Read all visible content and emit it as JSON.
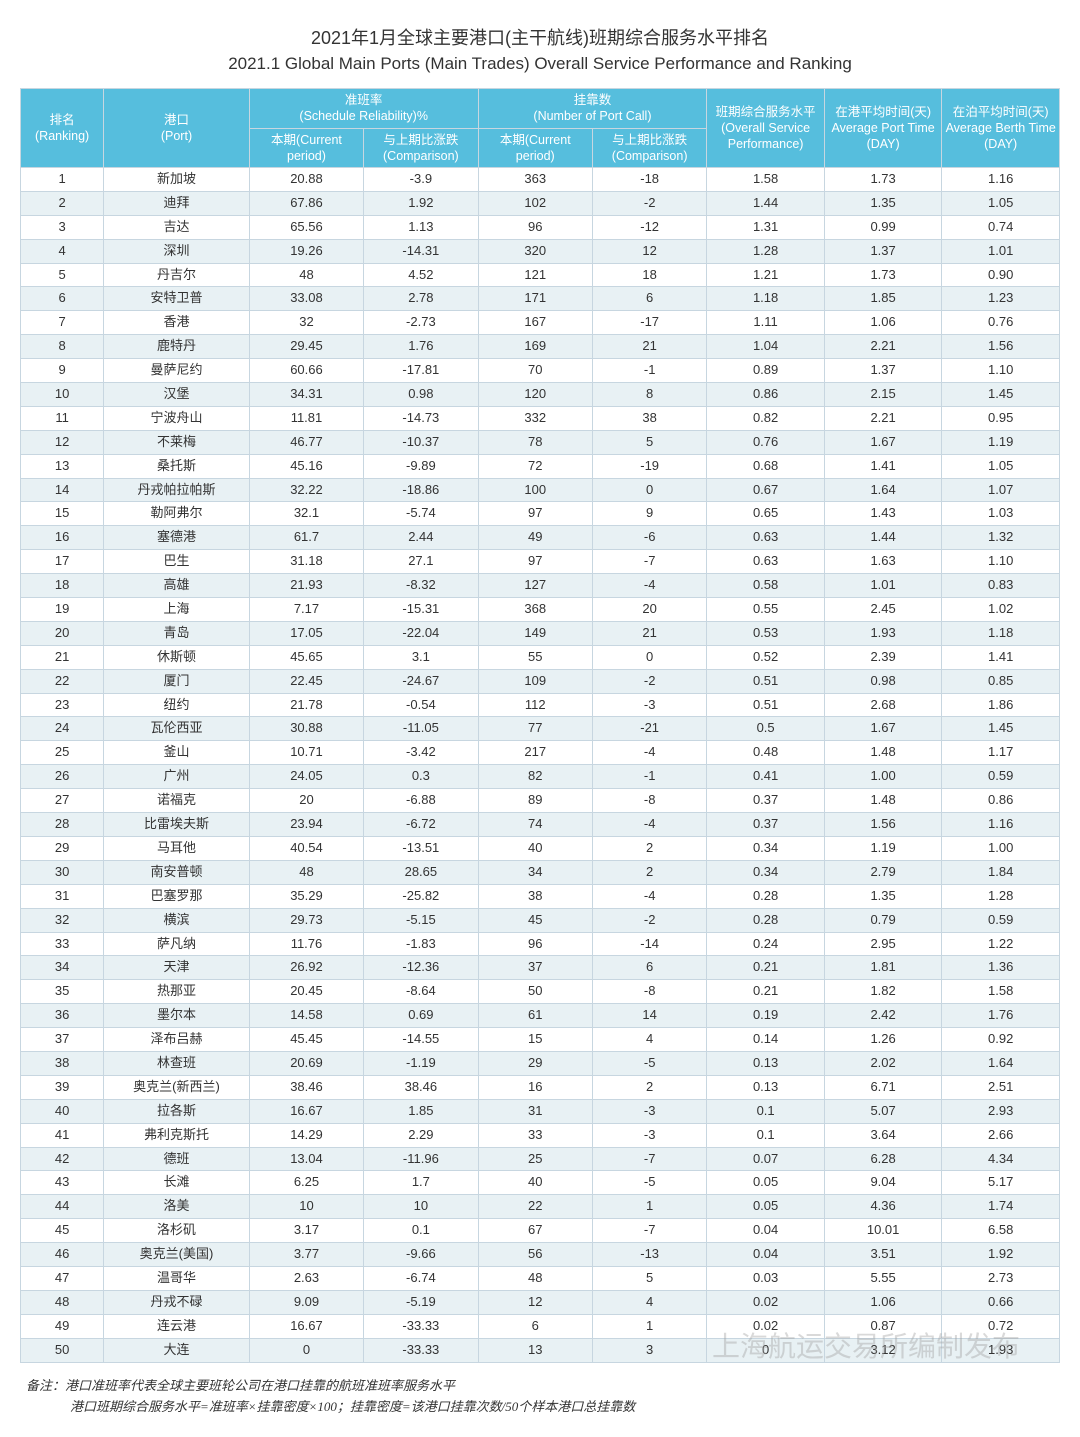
{
  "title_cn": "2021年1月全球主要港口(主干航线)班期综合服务水平排名",
  "title_en": "2021.1 Global Main Ports (Main Trades) Overall Service Performance and Ranking",
  "headers": {
    "ranking": "排名\n(Ranking)",
    "port": "港口\n(Port)",
    "reliability_group": "准班率\n(Schedule Reliability)%",
    "reliability_current": "本期(Current period)",
    "reliability_comp": "与上期比涨跌(Comparison)",
    "portcall_group": "挂靠数\n(Number of Port Call)",
    "portcall_current": "本期(Current period)",
    "portcall_comp": "与上期比涨跌(Comparison)",
    "overall": "班期综合服务水平(Overall Service Performance)",
    "avg_port": "在港平均时间(天)\nAverage Port Time (DAY)",
    "avg_berth": "在泊平均时间(天)\nAverage Berth Time (DAY)"
  },
  "rows": [
    [
      "1",
      "新加坡",
      "20.88",
      "-3.9",
      "363",
      "-18",
      "1.58",
      "1.73",
      "1.16"
    ],
    [
      "2",
      "迪拜",
      "67.86",
      "1.92",
      "102",
      "-2",
      "1.44",
      "1.35",
      "1.05"
    ],
    [
      "3",
      "吉达",
      "65.56",
      "1.13",
      "96",
      "-12",
      "1.31",
      "0.99",
      "0.74"
    ],
    [
      "4",
      "深圳",
      "19.26",
      "-14.31",
      "320",
      "12",
      "1.28",
      "1.37",
      "1.01"
    ],
    [
      "5",
      "丹吉尔",
      "48",
      "4.52",
      "121",
      "18",
      "1.21",
      "1.73",
      "0.90"
    ],
    [
      "6",
      "安特卫普",
      "33.08",
      "2.78",
      "171",
      "6",
      "1.18",
      "1.85",
      "1.23"
    ],
    [
      "7",
      "香港",
      "32",
      "-2.73",
      "167",
      "-17",
      "1.11",
      "1.06",
      "0.76"
    ],
    [
      "8",
      "鹿特丹",
      "29.45",
      "1.76",
      "169",
      "21",
      "1.04",
      "2.21",
      "1.56"
    ],
    [
      "9",
      "曼萨尼约",
      "60.66",
      "-17.81",
      "70",
      "-1",
      "0.89",
      "1.37",
      "1.10"
    ],
    [
      "10",
      "汉堡",
      "34.31",
      "0.98",
      "120",
      "8",
      "0.86",
      "2.15",
      "1.45"
    ],
    [
      "11",
      "宁波舟山",
      "11.81",
      "-14.73",
      "332",
      "38",
      "0.82",
      "2.21",
      "0.95"
    ],
    [
      "12",
      "不莱梅",
      "46.77",
      "-10.37",
      "78",
      "5",
      "0.76",
      "1.67",
      "1.19"
    ],
    [
      "13",
      "桑托斯",
      "45.16",
      "-9.89",
      "72",
      "-19",
      "0.68",
      "1.41",
      "1.05"
    ],
    [
      "14",
      "丹戎帕拉帕斯",
      "32.22",
      "-18.86",
      "100",
      "0",
      "0.67",
      "1.64",
      "1.07"
    ],
    [
      "15",
      "勒阿弗尔",
      "32.1",
      "-5.74",
      "97",
      "9",
      "0.65",
      "1.43",
      "1.03"
    ],
    [
      "16",
      "塞德港",
      "61.7",
      "2.44",
      "49",
      "-6",
      "0.63",
      "1.44",
      "1.32"
    ],
    [
      "17",
      "巴生",
      "31.18",
      "27.1",
      "97",
      "-7",
      "0.63",
      "1.63",
      "1.10"
    ],
    [
      "18",
      "高雄",
      "21.93",
      "-8.32",
      "127",
      "-4",
      "0.58",
      "1.01",
      "0.83"
    ],
    [
      "19",
      "上海",
      "7.17",
      "-15.31",
      "368",
      "20",
      "0.55",
      "2.45",
      "1.02"
    ],
    [
      "20",
      "青岛",
      "17.05",
      "-22.04",
      "149",
      "21",
      "0.53",
      "1.93",
      "1.18"
    ],
    [
      "21",
      "休斯顿",
      "45.65",
      "3.1",
      "55",
      "0",
      "0.52",
      "2.39",
      "1.41"
    ],
    [
      "22",
      "厦门",
      "22.45",
      "-24.67",
      "109",
      "-2",
      "0.51",
      "0.98",
      "0.85"
    ],
    [
      "23",
      "纽约",
      "21.78",
      "-0.54",
      "112",
      "-3",
      "0.51",
      "2.68",
      "1.86"
    ],
    [
      "24",
      "瓦伦西亚",
      "30.88",
      "-11.05",
      "77",
      "-21",
      "0.5",
      "1.67",
      "1.45"
    ],
    [
      "25",
      "釜山",
      "10.71",
      "-3.42",
      "217",
      "-4",
      "0.48",
      "1.48",
      "1.17"
    ],
    [
      "26",
      "广州",
      "24.05",
      "0.3",
      "82",
      "-1",
      "0.41",
      "1.00",
      "0.59"
    ],
    [
      "27",
      "诺福克",
      "20",
      "-6.88",
      "89",
      "-8",
      "0.37",
      "1.48",
      "0.86"
    ],
    [
      "28",
      "比雷埃夫斯",
      "23.94",
      "-6.72",
      "74",
      "-4",
      "0.37",
      "1.56",
      "1.16"
    ],
    [
      "29",
      "马耳他",
      "40.54",
      "-13.51",
      "40",
      "2",
      "0.34",
      "1.19",
      "1.00"
    ],
    [
      "30",
      "南安普顿",
      "48",
      "28.65",
      "34",
      "2",
      "0.34",
      "2.79",
      "1.84"
    ],
    [
      "31",
      "巴塞罗那",
      "35.29",
      "-25.82",
      "38",
      "-4",
      "0.28",
      "1.35",
      "1.28"
    ],
    [
      "32",
      "横滨",
      "29.73",
      "-5.15",
      "45",
      "-2",
      "0.28",
      "0.79",
      "0.59"
    ],
    [
      "33",
      "萨凡纳",
      "11.76",
      "-1.83",
      "96",
      "-14",
      "0.24",
      "2.95",
      "1.22"
    ],
    [
      "34",
      "天津",
      "26.92",
      "-12.36",
      "37",
      "6",
      "0.21",
      "1.81",
      "1.36"
    ],
    [
      "35",
      "热那亚",
      "20.45",
      "-8.64",
      "50",
      "-8",
      "0.21",
      "1.82",
      "1.58"
    ],
    [
      "36",
      "墨尔本",
      "14.58",
      "0.69",
      "61",
      "14",
      "0.19",
      "2.42",
      "1.76"
    ],
    [
      "37",
      "泽布吕赫",
      "45.45",
      "-14.55",
      "15",
      "4",
      "0.14",
      "1.26",
      "0.92"
    ],
    [
      "38",
      "林查班",
      "20.69",
      "-1.19",
      "29",
      "-5",
      "0.13",
      "2.02",
      "1.64"
    ],
    [
      "39",
      "奥克兰(新西兰)",
      "38.46",
      "38.46",
      "16",
      "2",
      "0.13",
      "6.71",
      "2.51"
    ],
    [
      "40",
      "拉各斯",
      "16.67",
      "1.85",
      "31",
      "-3",
      "0.1",
      "5.07",
      "2.93"
    ],
    [
      "41",
      "弗利克斯托",
      "14.29",
      "2.29",
      "33",
      "-3",
      "0.1",
      "3.64",
      "2.66"
    ],
    [
      "42",
      "德班",
      "13.04",
      "-11.96",
      "25",
      "-7",
      "0.07",
      "6.28",
      "4.34"
    ],
    [
      "43",
      "长滩",
      "6.25",
      "1.7",
      "40",
      "-5",
      "0.05",
      "9.04",
      "5.17"
    ],
    [
      "44",
      "洛美",
      "10",
      "10",
      "22",
      "1",
      "0.05",
      "4.36",
      "1.74"
    ],
    [
      "45",
      "洛杉矶",
      "3.17",
      "0.1",
      "67",
      "-7",
      "0.04",
      "10.01",
      "6.58"
    ],
    [
      "46",
      "奥克兰(美国)",
      "3.77",
      "-9.66",
      "56",
      "-13",
      "0.04",
      "3.51",
      "1.92"
    ],
    [
      "47",
      "温哥华",
      "2.63",
      "-6.74",
      "48",
      "5",
      "0.03",
      "5.55",
      "2.73"
    ],
    [
      "48",
      "丹戎不碌",
      "9.09",
      "-5.19",
      "12",
      "4",
      "0.02",
      "1.06",
      "0.66"
    ],
    [
      "49",
      "连云港",
      "16.67",
      "-33.33",
      "6",
      "1",
      "0.02",
      "0.87",
      "0.72"
    ],
    [
      "50",
      "大连",
      "0",
      "-33.33",
      "13",
      "3",
      "0",
      "3.12",
      "1.93"
    ]
  ],
  "footnote1": "备注：港口准班率代表全球主要班轮公司在港口挂靠的航班准班率服务水平",
  "footnote2": "港口班期综合服务水平=准班率×挂靠密度×100；挂靠密度=该港口挂靠次数/50个样本港口总挂靠数",
  "watermark": "上海航运交易所编制发布"
}
